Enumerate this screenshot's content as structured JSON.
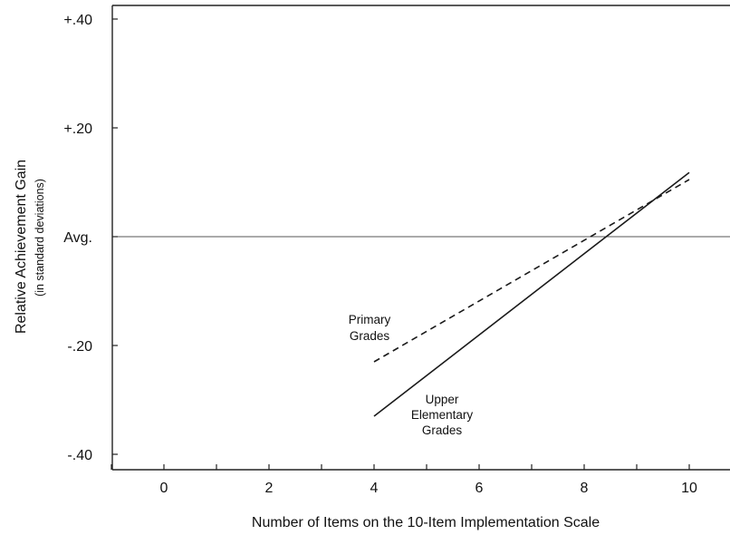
{
  "chart_data": {
    "type": "line",
    "title": "",
    "xlabel": "Number of Items on the 10-Item Implementation Scale",
    "ylabel": "Relative Achievement Gain",
    "ylabel_sub": "(in standard deviations)",
    "xlim": [
      -1,
      10.8
    ],
    "ylim": [
      -0.44,
      0.42
    ],
    "xticks": [
      {
        "value": 0,
        "label": "0"
      },
      {
        "value": 2,
        "label": "2"
      },
      {
        "value": 4,
        "label": "4"
      },
      {
        "value": 6,
        "label": "6"
      },
      {
        "value": 8,
        "label": "8"
      },
      {
        "value": 10,
        "label": "10"
      }
    ],
    "xminor": [
      -1,
      1,
      3,
      5,
      7,
      9
    ],
    "yticks": [
      {
        "value": 0.4,
        "label": "+.40"
      },
      {
        "value": 0.2,
        "label": "+.20"
      },
      {
        "value": 0,
        "label": "Avg."
      },
      {
        "value": -0.2,
        "label": "-.20"
      },
      {
        "value": -0.4,
        "label": "-.40"
      }
    ],
    "reference_line": {
      "y": 0
    },
    "series": [
      {
        "name": "Primary Grades",
        "name_lines": [
          "Primary",
          "Grades"
        ],
        "style": "dashed",
        "color": "#1a1a1a",
        "x": [
          4,
          10
        ],
        "y": [
          -0.23,
          0.105
        ]
      },
      {
        "name": "Upper Elementary Grades",
        "name_lines": [
          "Upper",
          "Elementary",
          "Grades"
        ],
        "style": "solid",
        "color": "#1a1a1a",
        "x": [
          4,
          10
        ],
        "y": [
          -0.33,
          0.118
        ]
      }
    ],
    "grid": false,
    "legend": "none"
  }
}
